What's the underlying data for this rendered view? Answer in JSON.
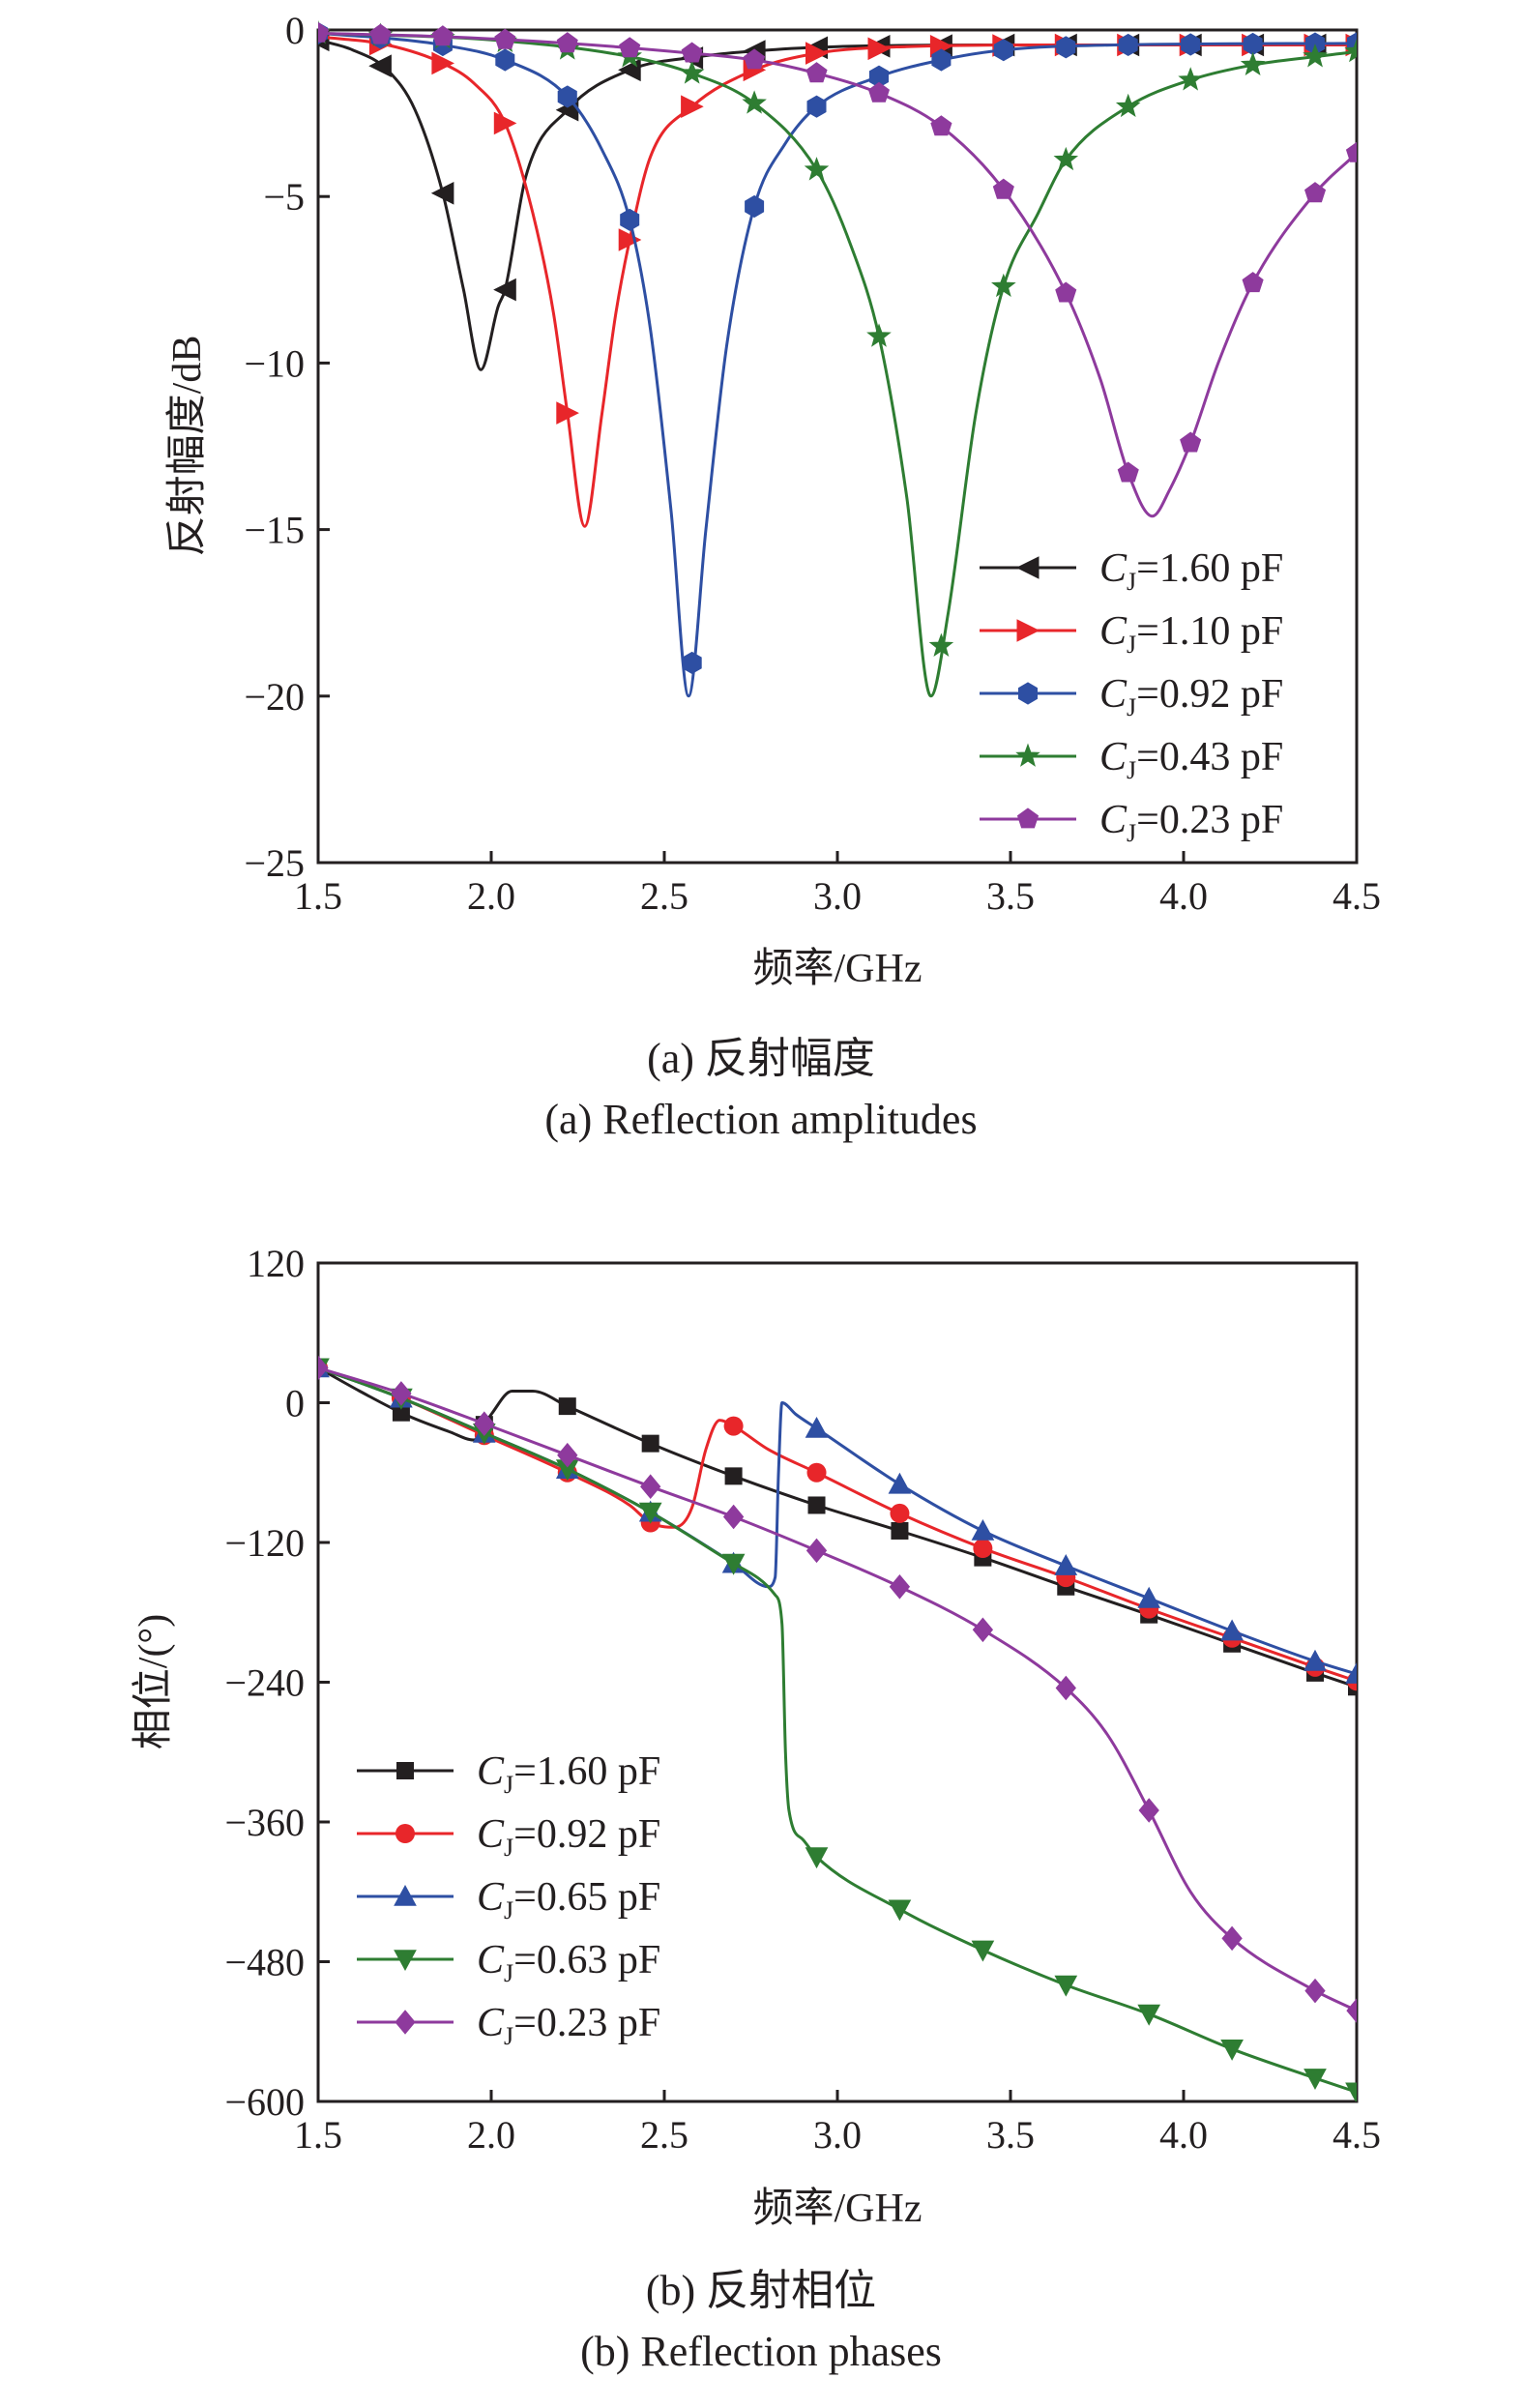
{
  "chart_data": [
    {
      "type": "line",
      "caption_cn": "(a) 反射幅度",
      "caption_en": "(a) Reflection amplitudes",
      "xlabel": "频率/GHz",
      "ylabel": "反射幅度/dB",
      "xlim": [
        1.5,
        4.5
      ],
      "ylim": [
        -25,
        0
      ],
      "xticks": [
        "1.5",
        "2.0",
        "2.5",
        "3.0",
        "3.5",
        "4.0",
        "4.5"
      ],
      "yticks": [
        "0",
        "−5",
        "−10",
        "−15",
        "−20",
        "−25"
      ],
      "legend_position": "bottom-right",
      "series": [
        {
          "name": "=1.60 pF",
          "name_prefix": "C",
          "name_sub": "J",
          "color": "#231f20",
          "marker": "triangle-left",
          "points": [
            [
              1.5,
              -0.3
            ],
            [
              1.6,
              -0.6
            ],
            [
              1.7,
              -1.2
            ],
            [
              1.78,
              -2.4
            ],
            [
              1.86,
              -4.9
            ],
            [
              1.92,
              -7.8
            ],
            [
              1.97,
              -10.2
            ],
            [
              2.02,
              -8.3
            ],
            [
              2.04,
              -7.8
            ],
            [
              2.1,
              -4.4
            ],
            [
              2.22,
              -2.4
            ],
            [
              2.4,
              -1.2
            ],
            [
              2.6,
              -0.8
            ],
            [
              2.8,
              -0.6
            ],
            [
              3.0,
              -0.5
            ],
            [
              3.5,
              -0.45
            ],
            [
              4.0,
              -0.45
            ],
            [
              4.5,
              -0.45
            ]
          ],
          "markers_x": [
            1.5,
            1.68,
            1.86,
            2.04,
            2.22,
            2.4,
            2.58,
            2.76,
            2.94,
            3.12,
            3.3,
            3.48,
            3.66,
            3.84,
            4.02,
            4.2,
            4.38,
            4.5
          ]
        },
        {
          "name": "=1.10 pF",
          "name_prefix": "C",
          "name_sub": "J",
          "color": "#e8262a",
          "marker": "triangle-right",
          "points": [
            [
              1.5,
              -0.2
            ],
            [
              1.7,
              -0.45
            ],
            [
              1.86,
              -1.0
            ],
            [
              1.95,
              -1.6
            ],
            [
              2.04,
              -2.8
            ],
            [
              2.12,
              -5.5
            ],
            [
              2.18,
              -8.5
            ],
            [
              2.22,
              -11.5
            ],
            [
              2.27,
              -14.9
            ],
            [
              2.32,
              -11.5
            ],
            [
              2.36,
              -8.5
            ],
            [
              2.4,
              -6.3
            ],
            [
              2.46,
              -3.8
            ],
            [
              2.58,
              -2.3
            ],
            [
              2.76,
              -1.2
            ],
            [
              2.94,
              -0.7
            ],
            [
              3.2,
              -0.5
            ],
            [
              3.6,
              -0.45
            ],
            [
              4.5,
              -0.45
            ]
          ],
          "markers_x": [
            1.5,
            1.68,
            1.86,
            2.04,
            2.22,
            2.4,
            2.58,
            2.76,
            2.94,
            3.12,
            3.3,
            3.48,
            3.66,
            3.84,
            4.02,
            4.2,
            4.38,
            4.5
          ]
        },
        {
          "name": "=0.92 pF",
          "name_prefix": "C",
          "name_sub": "J",
          "color": "#2e4fa3",
          "marker": "hexagon",
          "points": [
            [
              1.5,
              -0.1
            ],
            [
              1.7,
              -0.25
            ],
            [
              1.86,
              -0.45
            ],
            [
              2.04,
              -0.9
            ],
            [
              2.22,
              -2.0
            ],
            [
              2.32,
              -3.6
            ],
            [
              2.4,
              -5.7
            ],
            [
              2.46,
              -9.0
            ],
            [
              2.52,
              -14.5
            ],
            [
              2.57,
              -20.0
            ],
            [
              2.62,
              -15.0
            ],
            [
              2.68,
              -9.5
            ],
            [
              2.76,
              -5.3
            ],
            [
              2.85,
              -3.4
            ],
            [
              2.94,
              -2.3
            ],
            [
              3.12,
              -1.4
            ],
            [
              3.3,
              -0.9
            ],
            [
              3.48,
              -0.6
            ],
            [
              3.8,
              -0.45
            ],
            [
              4.5,
              -0.4
            ]
          ],
          "markers_x": [
            1.5,
            1.68,
            1.86,
            2.04,
            2.22,
            2.4,
            2.58,
            2.76,
            2.94,
            3.12,
            3.3,
            3.48,
            3.66,
            3.84,
            4.02,
            4.2,
            4.38,
            4.5
          ]
        },
        {
          "name": "=0.43 pF",
          "name_prefix": "C",
          "name_sub": "J",
          "color": "#2e7d32",
          "marker": "star",
          "points": [
            [
              1.5,
              -0.1
            ],
            [
              2.0,
              -0.3
            ],
            [
              2.4,
              -0.8
            ],
            [
              2.58,
              -1.3
            ],
            [
              2.76,
              -2.2
            ],
            [
              2.94,
              -4.2
            ],
            [
              3.04,
              -6.5
            ],
            [
              3.12,
              -9.2
            ],
            [
              3.2,
              -14.0
            ],
            [
              3.27,
              -20.0
            ],
            [
              3.32,
              -17.5
            ],
            [
              3.4,
              -11.5
            ],
            [
              3.48,
              -7.7
            ],
            [
              3.58,
              -5.5
            ],
            [
              3.66,
              -3.9
            ],
            [
              3.84,
              -2.3
            ],
            [
              4.02,
              -1.5
            ],
            [
              4.2,
              -1.05
            ],
            [
              4.38,
              -0.8
            ],
            [
              4.5,
              -0.65
            ]
          ],
          "markers_x": [
            1.5,
            1.68,
            1.86,
            2.04,
            2.22,
            2.4,
            2.58,
            2.76,
            2.94,
            3.12,
            3.3,
            3.48,
            3.66,
            3.84,
            4.02,
            4.2,
            4.38,
            4.5
          ]
        },
        {
          "name": "=0.23 pF",
          "name_prefix": "C",
          "name_sub": "J",
          "color": "#8e3a9d",
          "marker": "pentagon",
          "points": [
            [
              1.5,
              -0.1
            ],
            [
              1.86,
              -0.2
            ],
            [
              2.22,
              -0.4
            ],
            [
              2.58,
              -0.7
            ],
            [
              2.76,
              -0.9
            ],
            [
              2.94,
              -1.3
            ],
            [
              3.12,
              -1.9
            ],
            [
              3.3,
              -2.9
            ],
            [
              3.48,
              -4.8
            ],
            [
              3.66,
              -7.9
            ],
            [
              3.76,
              -10.5
            ],
            [
              3.84,
              -13.3
            ],
            [
              3.91,
              -14.6
            ],
            [
              3.96,
              -13.8
            ],
            [
              4.02,
              -12.4
            ],
            [
              4.1,
              -10.0
            ],
            [
              4.2,
              -7.6
            ],
            [
              4.38,
              -4.9
            ],
            [
              4.5,
              -3.7
            ]
          ],
          "markers_x": [
            1.5,
            1.68,
            1.86,
            2.04,
            2.22,
            2.4,
            2.58,
            2.76,
            2.94,
            3.12,
            3.3,
            3.48,
            3.66,
            3.84,
            4.02,
            4.2,
            4.38,
            4.5
          ]
        }
      ]
    },
    {
      "type": "line",
      "caption_cn": "(b) 反射相位",
      "caption_en": "(b) Reflection phases",
      "xlabel": "频率/GHz",
      "ylabel": "相位/(°)",
      "xlim": [
        1.5,
        4.5
      ],
      "ylim": [
        -600,
        120
      ],
      "xticks": [
        "1.5",
        "2.0",
        "2.5",
        "3.0",
        "3.5",
        "4.0",
        "4.5"
      ],
      "yticks": [
        "120",
        "0",
        "−120",
        "−240",
        "−360",
        "−480",
        "−600"
      ],
      "legend_position": "bottom-left",
      "series": [
        {
          "name": "=1.60 pF",
          "name_prefix": "C",
          "name_sub": "J",
          "color": "#231f20",
          "marker": "square",
          "points": [
            [
              1.5,
              30
            ],
            [
              1.62,
              10
            ],
            [
              1.75,
              -10
            ],
            [
              1.88,
              -25
            ],
            [
              1.95,
              -32
            ],
            [
              2.0,
              -10
            ],
            [
              2.06,
              10
            ],
            [
              2.12,
              10
            ],
            [
              2.22,
              -3
            ],
            [
              2.46,
              -35
            ],
            [
              2.7,
              -63
            ],
            [
              2.94,
              -88
            ],
            [
              3.18,
              -110
            ],
            [
              3.42,
              -133
            ],
            [
              3.66,
              -158
            ],
            [
              3.9,
              -182
            ],
            [
              4.14,
              -207
            ],
            [
              4.38,
              -232
            ],
            [
              4.5,
              -244
            ]
          ],
          "markers_x": [
            1.5,
            1.74,
            1.98,
            2.22,
            2.46,
            2.7,
            2.94,
            3.18,
            3.42,
            3.66,
            3.9,
            4.14,
            4.38,
            4.5
          ]
        },
        {
          "name": "=0.92 pF",
          "name_prefix": "C",
          "name_sub": "J",
          "color": "#e8262a",
          "marker": "circle",
          "points": [
            [
              1.5,
              30
            ],
            [
              1.74,
              4
            ],
            [
              1.98,
              -28
            ],
            [
              2.22,
              -60
            ],
            [
              2.4,
              -88
            ],
            [
              2.46,
              -103
            ],
            [
              2.53,
              -107
            ],
            [
              2.58,
              -90
            ],
            [
              2.62,
              -40
            ],
            [
              2.66,
              -15
            ],
            [
              2.7,
              -20
            ],
            [
              2.8,
              -40
            ],
            [
              2.94,
              -60
            ],
            [
              3.18,
              -95
            ],
            [
              3.42,
              -125
            ],
            [
              3.66,
              -150
            ],
            [
              3.9,
              -177
            ],
            [
              4.14,
              -202
            ],
            [
              4.38,
              -227
            ],
            [
              4.5,
              -239
            ]
          ],
          "markers_x": [
            1.5,
            1.74,
            1.98,
            2.22,
            2.46,
            2.7,
            2.94,
            3.18,
            3.42,
            3.66,
            3.9,
            4.14,
            4.38,
            4.5
          ]
        },
        {
          "name": "=0.65 pF",
          "name_prefix": "C",
          "name_sub": "J",
          "color": "#2e4fa3",
          "marker": "triangle-up",
          "points": [
            [
              1.5,
              30
            ],
            [
              1.74,
              4
            ],
            [
              1.98,
              -26
            ],
            [
              2.22,
              -57
            ],
            [
              2.46,
              -94
            ],
            [
              2.7,
              -138
            ],
            [
              2.8,
              -158
            ],
            [
              2.82,
              -150
            ],
            [
              2.83,
              -60
            ],
            [
              2.84,
              0
            ],
            [
              2.88,
              -10
            ],
            [
              2.94,
              -22
            ],
            [
              3.18,
              -70
            ],
            [
              3.42,
              -110
            ],
            [
              3.66,
              -140
            ],
            [
              3.9,
              -168
            ],
            [
              4.14,
              -196
            ],
            [
              4.38,
              -222
            ],
            [
              4.5,
              -233
            ]
          ],
          "markers_x": [
            1.5,
            1.74,
            1.98,
            2.22,
            2.46,
            2.7,
            2.94,
            3.18,
            3.42,
            3.66,
            3.9,
            4.14,
            4.38,
            4.5
          ]
        },
        {
          "name": "=0.63 pF",
          "name_prefix": "C",
          "name_sub": "J",
          "color": "#2e7d32",
          "marker": "triangle-down",
          "points": [
            [
              1.5,
              30
            ],
            [
              1.74,
              4
            ],
            [
              1.98,
              -26
            ],
            [
              2.22,
              -57
            ],
            [
              2.46,
              -94
            ],
            [
              2.7,
              -138
            ],
            [
              2.82,
              -165
            ],
            [
              2.84,
              -190
            ],
            [
              2.85,
              -300
            ],
            [
              2.86,
              -350
            ],
            [
              2.9,
              -375
            ],
            [
              2.94,
              -390
            ],
            [
              3.18,
              -435
            ],
            [
              3.42,
              -470
            ],
            [
              3.66,
              -500
            ],
            [
              3.9,
              -525
            ],
            [
              4.14,
              -555
            ],
            [
              4.38,
              -580
            ],
            [
              4.5,
              -592
            ]
          ],
          "markers_x": [
            1.5,
            1.74,
            1.98,
            2.22,
            2.46,
            2.7,
            2.94,
            3.18,
            3.42,
            3.66,
            3.9,
            4.14,
            4.38,
            4.5
          ]
        },
        {
          "name": "=0.23 pF",
          "name_prefix": "C",
          "name_sub": "J",
          "color": "#8e3a9d",
          "marker": "diamond",
          "points": [
            [
              1.5,
              30
            ],
            [
              1.74,
              8
            ],
            [
              1.98,
              -18
            ],
            [
              2.22,
              -45
            ],
            [
              2.46,
              -72
            ],
            [
              2.7,
              -98
            ],
            [
              2.94,
              -127
            ],
            [
              3.18,
              -158
            ],
            [
              3.42,
              -195
            ],
            [
              3.66,
              -245
            ],
            [
              3.78,
              -285
            ],
            [
              3.9,
              -350
            ],
            [
              4.02,
              -420
            ],
            [
              4.14,
              -460
            ],
            [
              4.38,
              -505
            ],
            [
              4.5,
              -522
            ]
          ],
          "markers_x": [
            1.5,
            1.74,
            1.98,
            2.22,
            2.46,
            2.7,
            2.94,
            3.18,
            3.42,
            3.66,
            3.9,
            4.14,
            4.38,
            4.5
          ]
        }
      ]
    }
  ]
}
